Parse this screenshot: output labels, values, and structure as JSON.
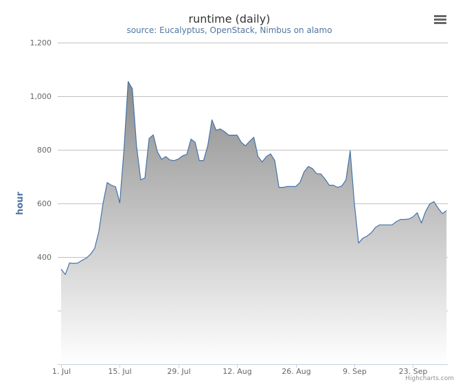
{
  "chart_data": {
    "type": "area",
    "title": "runtime (daily)",
    "subtitle": "source: Eucalyptus, OpenStack, Nimbus on alamo",
    "ylabel": "hour",
    "xlabel": "",
    "ylim": [
      0,
      1200
    ],
    "y_ticks": [
      {
        "value": 400,
        "label": "400"
      },
      {
        "value": 600,
        "label": "600"
      },
      {
        "value": 800,
        "label": "800"
      },
      {
        "value": 1000,
        "label": "1,000"
      },
      {
        "value": 1200,
        "label": "1,200"
      }
    ],
    "grid_values": [
      200,
      400,
      600,
      800,
      1000,
      1200
    ],
    "x_ticks": [
      {
        "day": 0,
        "label": "1. Jul"
      },
      {
        "day": 14,
        "label": "15. Jul"
      },
      {
        "day": 28,
        "label": "29. Jul"
      },
      {
        "day": 42,
        "label": "12. Aug"
      },
      {
        "day": 56,
        "label": "26. Aug"
      },
      {
        "day": 70,
        "label": "9. Sep"
      },
      {
        "day": 84,
        "label": "23. Sep"
      }
    ],
    "values": [
      355,
      335,
      378,
      376,
      378,
      388,
      396,
      410,
      432,
      495,
      600,
      678,
      668,
      662,
      602,
      800,
      1055,
      1028,
      815,
      688,
      695,
      842,
      856,
      792,
      765,
      775,
      762,
      760,
      766,
      778,
      783,
      840,
      828,
      760,
      760,
      815,
      912,
      873,
      878,
      868,
      855,
      855,
      855,
      828,
      815,
      832,
      847,
      775,
      755,
      775,
      785,
      760,
      660,
      660,
      663,
      663,
      663,
      678,
      718,
      738,
      730,
      711,
      710,
      691,
      668,
      668,
      660,
      665,
      688,
      797,
      600,
      452,
      470,
      478,
      490,
      510,
      520,
      520,
      520,
      520,
      532,
      540,
      540,
      542,
      550,
      565,
      527,
      570,
      598,
      607,
      582,
      562,
      573
    ],
    "fill_color_top": "#8c8c8c",
    "fill_color_bottom": "#ffffff",
    "line_color": "#4572a7",
    "grid": true,
    "legend": "none"
  },
  "credits": "Highcharts.com",
  "menu_icon": "hamburger-menu-icon"
}
